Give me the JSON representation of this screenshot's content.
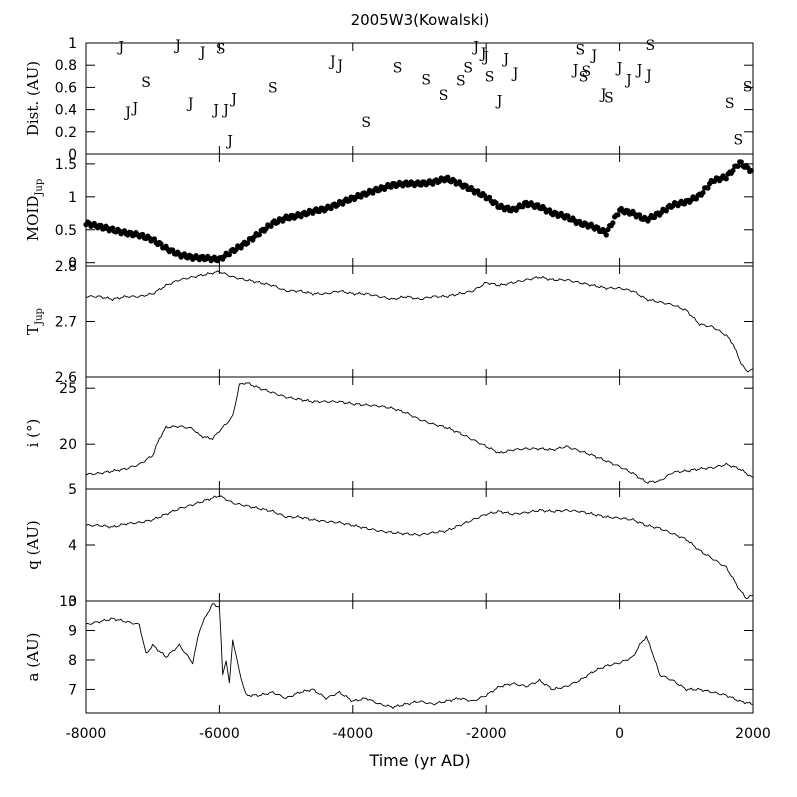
{
  "chart_data": {
    "type": "multi-panel",
    "title": "2005W3(Kowalski)",
    "xlabel": "Time (yr AD)",
    "xlim": [
      -8000,
      2000
    ],
    "xticks": [
      -8000,
      -6000,
      -4000,
      -2000,
      0,
      2000
    ],
    "xtick_labels": [
      "-8000",
      "-6000",
      "-4000",
      "-2000",
      "0",
      "2000"
    ],
    "panels": [
      {
        "id": "dist",
        "type": "scatter-text",
        "ylabel": "Dist. (AU)",
        "ylim": [
          0,
          1
        ],
        "yticks": [
          0,
          0.2,
          0.4,
          0.6,
          0.8,
          1
        ],
        "ytick_labels": [
          "0",
          "0.2",
          "0.4",
          "0.6",
          "0.8",
          "1"
        ],
        "points": [
          {
            "x": -7470,
            "y": 0.97,
            "label": "J"
          },
          {
            "x": -7370,
            "y": 0.38,
            "label": "J"
          },
          {
            "x": -7260,
            "y": 0.42,
            "label": "J"
          },
          {
            "x": -7100,
            "y": 0.65,
            "label": "S"
          },
          {
            "x": -6620,
            "y": 0.98,
            "label": "J"
          },
          {
            "x": -6430,
            "y": 0.46,
            "label": "J"
          },
          {
            "x": -6250,
            "y": 0.92,
            "label": "J"
          },
          {
            "x": -6050,
            "y": 0.4,
            "label": "J"
          },
          {
            "x": -5980,
            "y": 0.95,
            "label": "S"
          },
          {
            "x": -5900,
            "y": 0.4,
            "label": "J"
          },
          {
            "x": -5840,
            "y": 0.12,
            "label": "J"
          },
          {
            "x": -5780,
            "y": 0.5,
            "label": "J"
          },
          {
            "x": -5200,
            "y": 0.6,
            "label": "S"
          },
          {
            "x": -4300,
            "y": 0.84,
            "label": "J"
          },
          {
            "x": -4190,
            "y": 0.8,
            "label": "J"
          },
          {
            "x": -3800,
            "y": 0.29,
            "label": "S"
          },
          {
            "x": -3330,
            "y": 0.78,
            "label": "S"
          },
          {
            "x": -2900,
            "y": 0.67,
            "label": "S"
          },
          {
            "x": -2640,
            "y": 0.53,
            "label": "S"
          },
          {
            "x": -2380,
            "y": 0.66,
            "label": "S"
          },
          {
            "x": -2270,
            "y": 0.78,
            "label": "S"
          },
          {
            "x": -2150,
            "y": 0.97,
            "label": "J"
          },
          {
            "x": -2040,
            "y": 0.91,
            "label": "J"
          },
          {
            "x": -2000,
            "y": 0.88,
            "label": "J"
          },
          {
            "x": -1950,
            "y": 0.7,
            "label": "S"
          },
          {
            "x": -1800,
            "y": 0.48,
            "label": "J"
          },
          {
            "x": -1700,
            "y": 0.86,
            "label": "J"
          },
          {
            "x": -1560,
            "y": 0.73,
            "label": "J"
          },
          {
            "x": -660,
            "y": 0.76,
            "label": "J"
          },
          {
            "x": -590,
            "y": 0.94,
            "label": "S"
          },
          {
            "x": -540,
            "y": 0.7,
            "label": "S"
          },
          {
            "x": -500,
            "y": 0.75,
            "label": "S"
          },
          {
            "x": -380,
            "y": 0.89,
            "label": "J"
          },
          {
            "x": -240,
            "y": 0.54,
            "label": "J"
          },
          {
            "x": -160,
            "y": 0.51,
            "label": "S"
          },
          {
            "x": 0,
            "y": 0.78,
            "label": "J"
          },
          {
            "x": 140,
            "y": 0.67,
            "label": "J"
          },
          {
            "x": 300,
            "y": 0.76,
            "label": "J"
          },
          {
            "x": 440,
            "y": 0.71,
            "label": "J"
          },
          {
            "x": 460,
            "y": 0.98,
            "label": "S"
          },
          {
            "x": 1650,
            "y": 0.46,
            "label": "S"
          },
          {
            "x": 1780,
            "y": 0.13,
            "label": "S"
          },
          {
            "x": 1920,
            "y": 0.61,
            "label": "S"
          }
        ]
      },
      {
        "id": "moid",
        "type": "scatter",
        "ylabel": "MOID",
        "ylabel_sub": "Jup",
        "ylim": [
          -0.05,
          1.65
        ],
        "yticks": [
          0,
          0.5,
          1,
          1.5
        ],
        "ytick_labels": [
          "0",
          "0.5",
          "1",
          "1.5"
        ],
        "x": [
          -8000,
          -7800,
          -7600,
          -7400,
          -7200,
          -7000,
          -6800,
          -6600,
          -6400,
          -6200,
          -6000,
          -5800,
          -5600,
          -5400,
          -5200,
          -5000,
          -4800,
          -4600,
          -4400,
          -4200,
          -4000,
          -3800,
          -3600,
          -3400,
          -3200,
          -3000,
          -2800,
          -2600,
          -2400,
          -2200,
          -2000,
          -1800,
          -1600,
          -1400,
          -1200,
          -1000,
          -800,
          -600,
          -400,
          -200,
          0,
          200,
          400,
          600,
          800,
          1000,
          1200,
          1400,
          1600,
          1800,
          2000
        ],
        "values": [
          0.6,
          0.55,
          0.5,
          0.45,
          0.42,
          0.35,
          0.22,
          0.12,
          0.08,
          0.07,
          0.05,
          0.18,
          0.3,
          0.45,
          0.6,
          0.68,
          0.72,
          0.78,
          0.82,
          0.9,
          0.98,
          1.05,
          1.12,
          1.18,
          1.2,
          1.2,
          1.22,
          1.28,
          1.2,
          1.1,
          1.0,
          0.85,
          0.8,
          0.9,
          0.85,
          0.75,
          0.7,
          0.6,
          0.55,
          0.45,
          0.8,
          0.75,
          0.65,
          0.75,
          0.88,
          0.92,
          1.02,
          1.25,
          1.3,
          1.52,
          1.38
        ]
      },
      {
        "id": "tjup",
        "type": "line",
        "ylabel": "T",
        "ylabel_sub": "Jup",
        "ylim": [
          2.6,
          2.8
        ],
        "yticks": [
          2.6,
          2.7,
          2.8
        ],
        "ytick_labels": [
          "2.6",
          "2.7",
          "2.8"
        ],
        "x": [
          -8000,
          -7800,
          -7600,
          -7400,
          -7200,
          -7000,
          -6800,
          -6600,
          -6400,
          -6200,
          -6000,
          -5800,
          -5600,
          -5400,
          -5200,
          -5000,
          -4800,
          -4600,
          -4400,
          -4200,
          -4000,
          -3800,
          -3600,
          -3400,
          -3200,
          -3000,
          -2800,
          -2600,
          -2400,
          -2200,
          -2000,
          -1800,
          -1600,
          -1400,
          -1200,
          -1000,
          -800,
          -600,
          -400,
          -200,
          0,
          200,
          400,
          600,
          800,
          1000,
          1200,
          1400,
          1600,
          1700,
          1800,
          1900,
          2000
        ],
        "values": [
          2.745,
          2.745,
          2.74,
          2.745,
          2.745,
          2.75,
          2.765,
          2.775,
          2.78,
          2.785,
          2.79,
          2.78,
          2.775,
          2.77,
          2.765,
          2.755,
          2.755,
          2.75,
          2.75,
          2.755,
          2.75,
          2.75,
          2.745,
          2.74,
          2.745,
          2.74,
          2.745,
          2.745,
          2.75,
          2.755,
          2.77,
          2.765,
          2.77,
          2.775,
          2.78,
          2.775,
          2.775,
          2.77,
          2.765,
          2.76,
          2.76,
          2.755,
          2.74,
          2.735,
          2.73,
          2.72,
          2.695,
          2.69,
          2.675,
          2.66,
          2.63,
          2.61,
          2.615
        ]
      },
      {
        "id": "inc",
        "type": "line",
        "ylabel": "i (°)",
        "ylim": [
          16,
          26
        ],
        "yticks": [
          20,
          25
        ],
        "ytick_labels": [
          "20",
          "25"
        ],
        "x": [
          -8000,
          -7800,
          -7600,
          -7400,
          -7200,
          -7000,
          -6900,
          -6800,
          -6600,
          -6400,
          -6300,
          -6200,
          -6100,
          -6000,
          -5900,
          -5800,
          -5700,
          -5600,
          -5400,
          -5200,
          -5000,
          -4800,
          -4600,
          -4400,
          -4200,
          -4000,
          -3800,
          -3600,
          -3400,
          -3200,
          -3000,
          -2800,
          -2600,
          -2400,
          -2200,
          -2000,
          -1800,
          -1600,
          -1400,
          -1200,
          -1000,
          -800,
          -600,
          -400,
          -200,
          0,
          200,
          400,
          600,
          800,
          1000,
          1200,
          1400,
          1600,
          1800,
          2000
        ],
        "values": [
          17.3,
          17.4,
          17.6,
          17.8,
          18.2,
          19.0,
          20.5,
          21.5,
          21.6,
          21.4,
          20.8,
          20.6,
          20.5,
          21.2,
          21.8,
          22.5,
          25.3,
          25.5,
          25.0,
          24.6,
          24.2,
          24.0,
          23.8,
          23.8,
          23.8,
          23.6,
          23.5,
          23.4,
          23.2,
          22.8,
          22.2,
          21.8,
          21.5,
          21.0,
          20.4,
          19.8,
          19.2,
          19.5,
          19.6,
          19.6,
          19.5,
          19.8,
          19.4,
          19.0,
          18.5,
          18.0,
          17.4,
          16.6,
          16.7,
          17.5,
          17.6,
          17.8,
          17.9,
          18.2,
          17.8,
          17.0
        ]
      },
      {
        "id": "q",
        "type": "line",
        "ylabel": "q (AU)",
        "ylim": [
          3,
          5
        ],
        "yticks": [
          3,
          4,
          5
        ],
        "ytick_labels": [
          "3",
          "4",
          "5"
        ],
        "x": [
          -8000,
          -7800,
          -7600,
          -7400,
          -7200,
          -7000,
          -6800,
          -6600,
          -6400,
          -6200,
          -6000,
          -5800,
          -5600,
          -5400,
          -5200,
          -5000,
          -4800,
          -4600,
          -4400,
          -4200,
          -4000,
          -3800,
          -3600,
          -3400,
          -3200,
          -3000,
          -2800,
          -2600,
          -2400,
          -2200,
          -2000,
          -1800,
          -1600,
          -1400,
          -1200,
          -1000,
          -800,
          -600,
          -400,
          -200,
          0,
          200,
          400,
          600,
          800,
          1000,
          1200,
          1400,
          1600,
          1700,
          1800,
          1900,
          2000
        ],
        "values": [
          4.35,
          4.35,
          4.32,
          4.38,
          4.4,
          4.45,
          4.55,
          4.65,
          4.72,
          4.8,
          4.88,
          4.75,
          4.7,
          4.65,
          4.6,
          4.5,
          4.5,
          4.45,
          4.42,
          4.4,
          4.35,
          4.3,
          4.25,
          4.22,
          4.2,
          4.18,
          4.22,
          4.25,
          4.35,
          4.45,
          4.55,
          4.6,
          4.55,
          4.58,
          4.62,
          4.6,
          4.62,
          4.6,
          4.55,
          4.5,
          4.48,
          4.45,
          4.35,
          4.3,
          4.2,
          4.1,
          3.9,
          3.75,
          3.6,
          3.4,
          3.2,
          3.05,
          3.1
        ]
      },
      {
        "id": "a",
        "type": "line",
        "ylabel": "a (AU)",
        "ylim": [
          6.2,
          10
        ],
        "yticks": [
          7,
          8,
          9,
          10
        ],
        "ytick_labels": [
          "7",
          "8",
          "9",
          "10"
        ],
        "x": [
          -8000,
          -7800,
          -7600,
          -7400,
          -7200,
          -7100,
          -7000,
          -6800,
          -6600,
          -6500,
          -6400,
          -6300,
          -6200,
          -6100,
          -6000,
          -5950,
          -5900,
          -5850,
          -5800,
          -5700,
          -5600,
          -5400,
          -5200,
          -5000,
          -4800,
          -4600,
          -4400,
          -4200,
          -4000,
          -3800,
          -3600,
          -3400,
          -3200,
          -3000,
          -2800,
          -2600,
          -2400,
          -2200,
          -2000,
          -1800,
          -1600,
          -1400,
          -1200,
          -1000,
          -800,
          -600,
          -400,
          -200,
          0,
          200,
          300,
          400,
          500,
          600,
          800,
          1000,
          1200,
          1400,
          1600,
          1800,
          2000
        ],
        "values": [
          9.2,
          9.3,
          9.4,
          9.3,
          9.2,
          8.2,
          8.5,
          8.1,
          8.5,
          8.2,
          7.9,
          9.0,
          9.5,
          9.9,
          9.8,
          7.5,
          8.0,
          7.2,
          8.7,
          7.6,
          6.8,
          6.8,
          6.9,
          6.7,
          6.9,
          7.0,
          6.7,
          6.9,
          6.6,
          6.7,
          6.5,
          6.4,
          6.5,
          6.6,
          6.5,
          6.6,
          6.7,
          6.6,
          6.8,
          7.1,
          7.2,
          7.1,
          7.3,
          7.0,
          7.1,
          7.3,
          7.6,
          7.8,
          7.9,
          8.1,
          8.5,
          8.8,
          8.2,
          7.5,
          7.3,
          7.0,
          7.0,
          6.9,
          6.8,
          6.6,
          6.5
        ]
      }
    ]
  }
}
